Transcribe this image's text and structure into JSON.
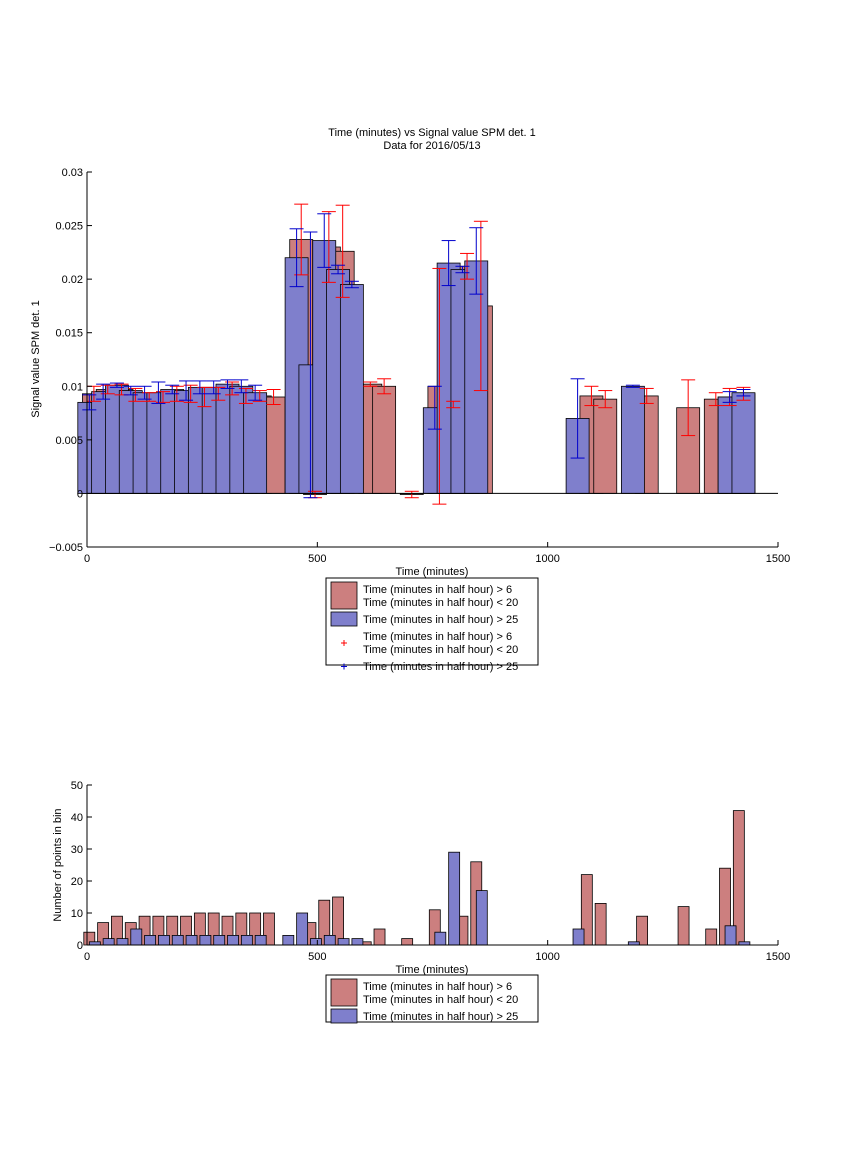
{
  "colors": {
    "red_fill": "#cc7f7f",
    "blue_fill": "#7f7fcc",
    "red_err": "#ff0000",
    "blue_err": "#0000cc",
    "axis": "#000000"
  },
  "chart_data": [
    {
      "type": "bar",
      "title": "Time (minutes) vs Signal value SPM det. 1",
      "subtitle": "Data for 2016/05/13",
      "xlabel": "Time (minutes)",
      "ylabel": "Signal value SPM det. 1",
      "xlim": [
        0,
        1500
      ],
      "ylim": [
        -0.005,
        0.03
      ],
      "xticks": [
        "0",
        "500",
        "1000",
        "1500"
      ],
      "yticks": [
        "−0.005",
        "0",
        "0.005",
        "0.01",
        "0.015",
        "0.02",
        "0.025",
        "0.03"
      ],
      "bar_width": 23,
      "legend": {
        "placement": "below",
        "entries": [
          {
            "type": "patch",
            "color": "red",
            "lines": [
              "Time (minutes in half hour) > 6",
              "Time (minutes in half hour) < 20"
            ]
          },
          {
            "type": "patch",
            "color": "blue",
            "lines": [
              "Time (minutes in half hour) > 25"
            ]
          },
          {
            "type": "marker",
            "color": "red",
            "lines": [
              "Time (minutes in half hour) > 6",
              "Time (minutes in half hour) < 20"
            ]
          },
          {
            "type": "marker",
            "color": "blue",
            "lines": [
              "Time (minutes in half hour) > 25"
            ]
          }
        ]
      },
      "series": [
        {
          "color": "red",
          "x": [
            15,
            45,
            75,
            105,
            135,
            165,
            195,
            225,
            255,
            285,
            315,
            345,
            375,
            405,
            465,
            495,
            525,
            555,
            615,
            645,
            705,
            765,
            795,
            825,
            855,
            1095,
            1125,
            1215,
            1305,
            1365,
            1395,
            1425
          ],
          "values": [
            0.0093,
            0.0097,
            0.0097,
            0.0092,
            0.009,
            0.009,
            0.0093,
            0.0093,
            0.009,
            0.0093,
            0.0098,
            0.0091,
            0.0091,
            0.009,
            0.0237,
            -0.0001,
            0.023,
            0.0226,
            0.0102,
            0.01,
            -0.0001,
            0.01,
            0.0083,
            0.0212,
            0.0175,
            0.0091,
            0.0088,
            0.0091,
            0.008,
            0.0088,
            0.009,
            0.0093
          ],
          "err": [
            0.0007,
            0.0004,
            0.0005,
            0.0006,
            0.0004,
            0.0005,
            0.0007,
            0.0008,
            0.0009,
            0.0006,
            0.0006,
            0.0007,
            0.0005,
            0.0007,
            0.0033,
            0.0003,
            0.0033,
            0.0043,
            0.0002,
            0.0007,
            0.0003,
            0.011,
            0.0003,
            0.0012,
            0.0079,
            0.0009,
            0.0008,
            0.0007,
            0.0026,
            0.0006,
            0.0008,
            0.0006
          ]
        },
        {
          "color": "blue",
          "x": [
            5,
            35,
            65,
            95,
            125,
            155,
            185,
            215,
            245,
            275,
            305,
            335,
            365,
            455,
            485,
            515,
            545,
            575,
            755,
            785,
            815,
            845,
            1065,
            1185,
            1395,
            1425
          ],
          "values": [
            0.0085,
            0.0095,
            0.0101,
            0.0096,
            0.0094,
            0.0094,
            0.0097,
            0.0096,
            0.0099,
            0.0099,
            0.0102,
            0.01,
            0.0094,
            0.022,
            0.012,
            0.0236,
            0.0209,
            0.0195,
            0.008,
            0.0215,
            0.0209,
            0.0217,
            0.007,
            0.01,
            0.009,
            0.0094
          ],
          "err": [
            0.0007,
            0.0007,
            0.0002,
            0.0004,
            0.0006,
            0.001,
            0.0004,
            0.0009,
            0.0006,
            0.0006,
            0.0004,
            0.0006,
            0.0007,
            0.0027,
            0.0124,
            0.0025,
            0.0004,
            0.0003,
            0.002,
            0.0021,
            0.0003,
            0.0031,
            0.0037,
            0.0001,
            0.0005,
            0.0003
          ]
        }
      ]
    },
    {
      "type": "bar",
      "xlabel": "Time (minutes)",
      "ylabel": "Number of points in bin",
      "xlim": [
        0,
        1500
      ],
      "ylim": [
        0,
        50
      ],
      "xticks": [
        "0",
        "500",
        "1000",
        "1500"
      ],
      "yticks": [
        "0",
        "10",
        "20",
        "30",
        "40",
        "50"
      ],
      "bar_width": 11,
      "legend": {
        "placement": "below",
        "entries": [
          {
            "type": "patch",
            "color": "red",
            "lines": [
              "Time (minutes in half hour) > 6",
              "Time (minutes in half hour) < 20"
            ]
          },
          {
            "type": "patch",
            "color": "blue",
            "lines": [
              "Time (minutes in half hour) > 25"
            ]
          }
        ]
      },
      "series": [
        {
          "color": "red",
          "x": [
            5,
            35,
            65,
            95,
            125,
            155,
            185,
            215,
            245,
            275,
            305,
            335,
            365,
            395,
            485,
            515,
            545,
            605,
            635,
            695,
            755,
            815,
            845,
            1085,
            1115,
            1205,
            1295,
            1355,
            1385,
            1415
          ],
          "values": [
            4,
            7,
            9,
            7,
            9,
            9,
            9,
            9,
            10,
            10,
            9,
            10,
            10,
            10,
            7,
            14,
            15,
            1,
            5,
            2,
            11,
            9,
            26,
            22,
            13,
            9,
            12,
            5,
            24,
            42
          ]
        },
        {
          "color": "blue",
          "x": [
            17,
            47,
            77,
            107,
            137,
            167,
            197,
            227,
            257,
            287,
            317,
            347,
            377,
            437,
            467,
            497,
            527,
            557,
            587,
            767,
            797,
            857,
            1067,
            1187,
            1397,
            1427
          ],
          "values": [
            1,
            2,
            2,
            5,
            3,
            3,
            3,
            3,
            3,
            3,
            3,
            3,
            3,
            3,
            10,
            2,
            3,
            2,
            2,
            4,
            29,
            17,
            5,
            1,
            6,
            1
          ]
        }
      ]
    }
  ]
}
